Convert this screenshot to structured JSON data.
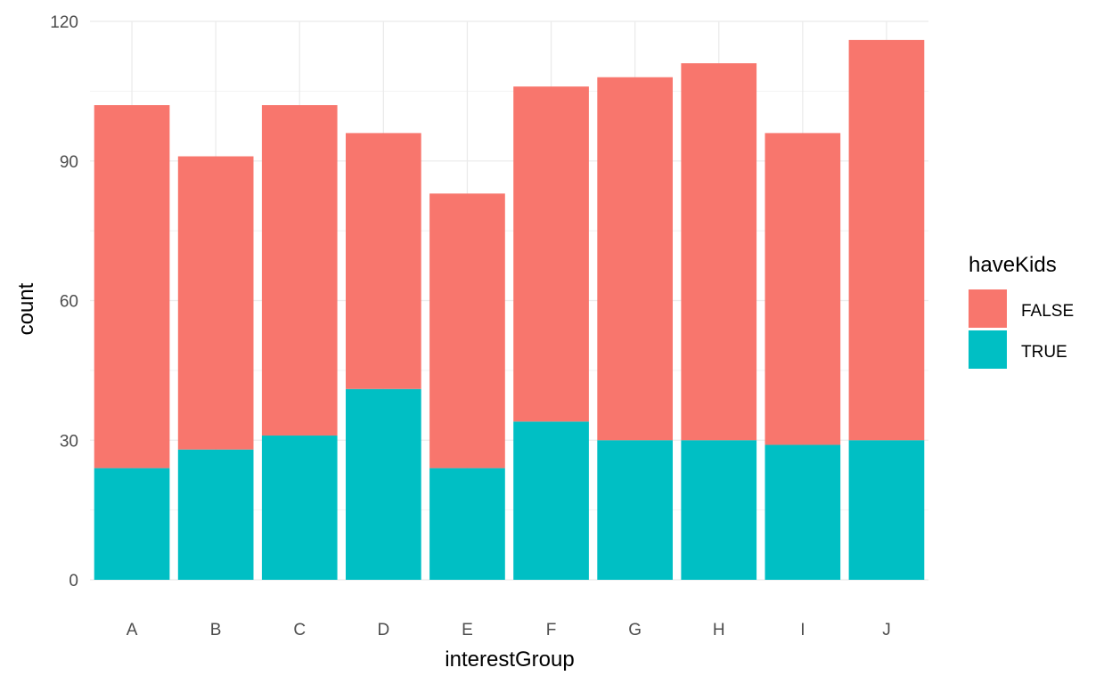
{
  "chart_data": {
    "type": "bar",
    "stacked": true,
    "xlabel": "interestGroup",
    "ylabel": "count",
    "ylim": [
      0,
      120
    ],
    "yticks": [
      0,
      30,
      60,
      90,
      120
    ],
    "categories": [
      "A",
      "B",
      "C",
      "D",
      "E",
      "F",
      "G",
      "H",
      "I",
      "J"
    ],
    "series": [
      {
        "name": "FALSE",
        "color": "#F8766D",
        "values": [
          78,
          63,
          71,
          55,
          59,
          72,
          78,
          81,
          67,
          86
        ]
      },
      {
        "name": "TRUE",
        "color": "#00BFC4",
        "values": [
          24,
          28,
          31,
          41,
          24,
          34,
          30,
          30,
          29,
          30
        ]
      }
    ],
    "legend": {
      "title": "haveKids",
      "position": "right",
      "entries": [
        "FALSE",
        "TRUE"
      ]
    },
    "grid": true,
    "theme": "minimal"
  }
}
